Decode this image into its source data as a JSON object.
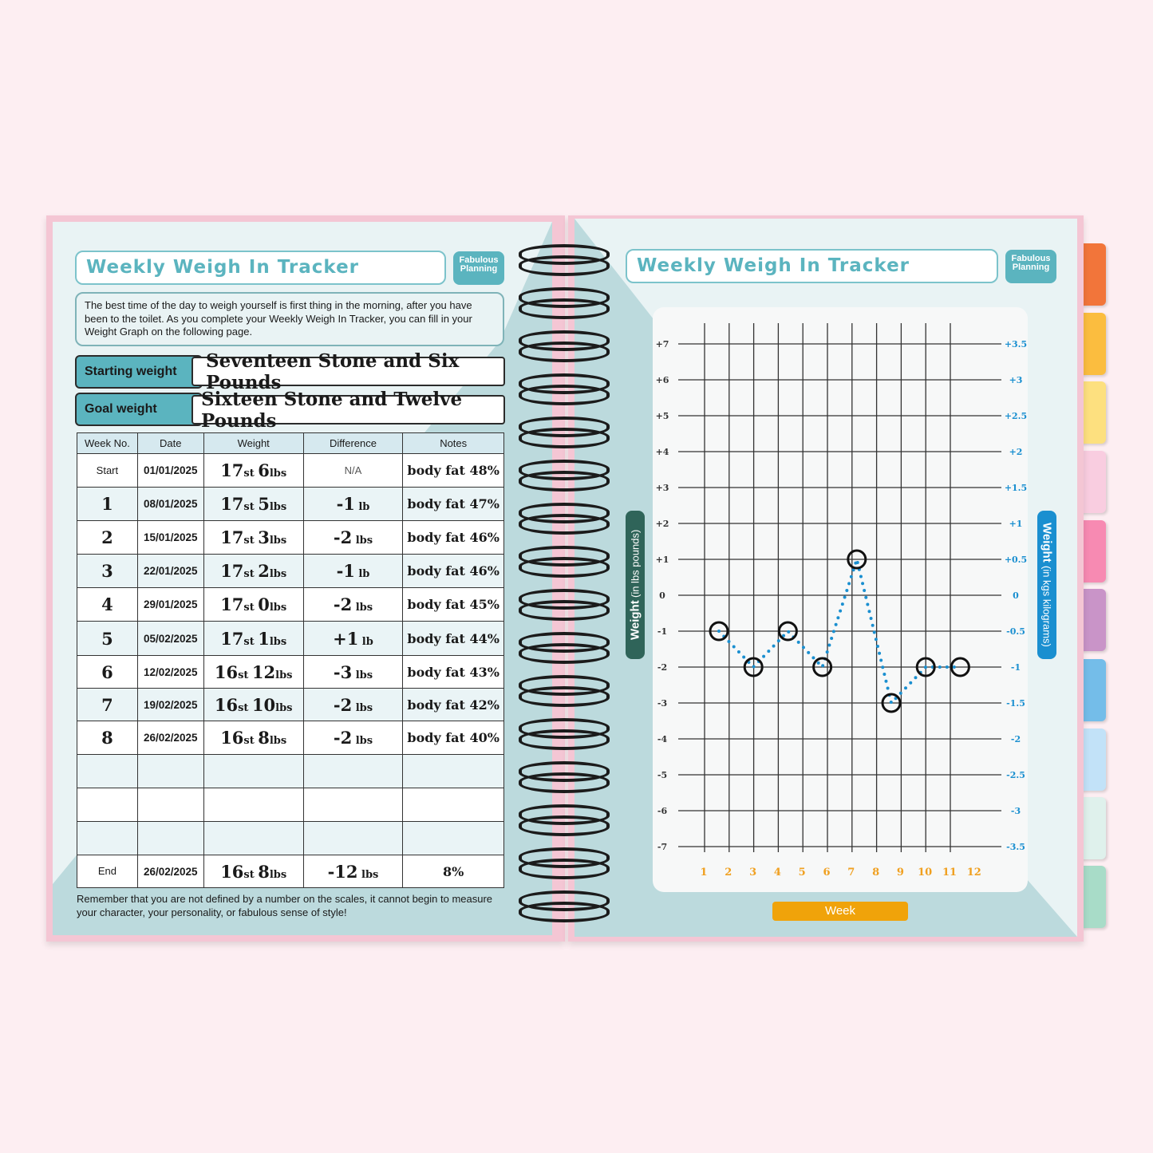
{
  "left_page": {
    "title": "Weekly Weigh In Tracker",
    "logo_text": "Fabulous Planning",
    "intro": "The best time of the day to weigh yourself is first thing in the morning, after you have been to the toilet. As you complete your Weekly Weigh In Tracker, you can fill in your Weight Graph on the following page.",
    "starting_weight": {
      "label": "Starting weight",
      "value": "Seventeen Stone and Six Pounds"
    },
    "goal_weight": {
      "label": "Goal weight",
      "value": "Sixteen Stone and Twelve Pounds"
    },
    "table": {
      "headers": [
        "Week No.",
        "Date",
        "Weight",
        "Difference",
        "Notes"
      ],
      "units": {
        "st": "st",
        "lbs": "lbs"
      },
      "rows": [
        {
          "week": "Start",
          "date": "01/01/2025",
          "st": "17",
          "lbs": "6",
          "diff": "N/A",
          "diff_unit": "",
          "notes": "body fat 48%"
        },
        {
          "week": "1",
          "date": "08/01/2025",
          "st": "17",
          "lbs": "5",
          "diff": "-1",
          "diff_unit": "lb",
          "notes": "body fat 47%"
        },
        {
          "week": "2",
          "date": "15/01/2025",
          "st": "17",
          "lbs": "3",
          "diff": "-2",
          "diff_unit": "lbs",
          "notes": "body fat 46%"
        },
        {
          "week": "3",
          "date": "22/01/2025",
          "st": "17",
          "lbs": "2",
          "diff": "-1",
          "diff_unit": "lb",
          "notes": "body fat 46%"
        },
        {
          "week": "4",
          "date": "29/01/2025",
          "st": "17",
          "lbs": "0",
          "diff": "-2",
          "diff_unit": "lbs",
          "notes": "body fat 45%"
        },
        {
          "week": "5",
          "date": "05/02/2025",
          "st": "17",
          "lbs": "1",
          "diff": "+1",
          "diff_unit": "lb",
          "notes": "body fat 44%"
        },
        {
          "week": "6",
          "date": "12/02/2025",
          "st": "16",
          "lbs": "12",
          "diff": "-3",
          "diff_unit": "lbs",
          "notes": "body fat 43%"
        },
        {
          "week": "7",
          "date": "19/02/2025",
          "st": "16",
          "lbs": "10",
          "diff": "-2",
          "diff_unit": "lbs",
          "notes": "body fat 42%"
        },
        {
          "week": "8",
          "date": "26/02/2025",
          "st": "16",
          "lbs": "8",
          "diff": "-2",
          "diff_unit": "lbs",
          "notes": "body fat 40%"
        },
        {
          "week": "",
          "date": "",
          "st": "",
          "lbs": "",
          "diff": "",
          "diff_unit": "",
          "notes": ""
        },
        {
          "week": "",
          "date": "",
          "st": "",
          "lbs": "",
          "diff": "",
          "diff_unit": "",
          "notes": ""
        },
        {
          "week": "",
          "date": "",
          "st": "",
          "lbs": "",
          "diff": "",
          "diff_unit": "",
          "notes": ""
        },
        {
          "week": "End",
          "date": "26/02/2025",
          "st": "16",
          "lbs": "8",
          "diff": "-12",
          "diff_unit": "lbs",
          "notes": "8%"
        }
      ]
    },
    "footer": "Remember that you are not defined by a number on the scales, it cannot begin to measure your character, your personality, or fabulous sense of style!"
  },
  "right_page": {
    "title": "Weekly Weigh In Tracker",
    "logo_text": "Fabulous Planning",
    "left_axis_label": {
      "bold": "Weight",
      "rest": "(in lbs pounds)"
    },
    "right_axis_label": {
      "bold": "Weight",
      "rest": "(in kgs kilograms)"
    },
    "x_axis_button": "Week"
  },
  "chart_data": {
    "type": "line",
    "xlabel": "Week",
    "ylabel": "Weight (in lbs pounds)",
    "y2label": "Weight (in kgs kilograms)",
    "x_ticks": [
      "1",
      "2",
      "3",
      "4",
      "5",
      "6",
      "7",
      "8",
      "9",
      "10",
      "11",
      "12"
    ],
    "y_ticks": [
      "+7",
      "+6",
      "+5",
      "+4",
      "+3",
      "+2",
      "+1",
      "0",
      "-1",
      "-2",
      "-3",
      "-4",
      "-5",
      "-6",
      "-7"
    ],
    "y2_ticks": [
      "+3.5",
      "+3",
      "+2.5",
      "+2",
      "+1.5",
      "+1",
      "+0.5",
      "0",
      "-0.5",
      "-1",
      "-1.5",
      "-2",
      "-2.5",
      "-3",
      "-3.5"
    ],
    "ylim": [
      -7,
      7
    ],
    "grid": true,
    "values": [
      -1,
      -2,
      -1,
      -2,
      1,
      -3,
      -2,
      -2
    ],
    "colors": {
      "line": "#1a8fd0",
      "marker": "#111111",
      "x_ticks": "#f0a020",
      "y2_ticks": "#1a8fd0",
      "y_ticks": "#333333"
    }
  },
  "tabs_colors": [
    "#f2753a",
    "#fbbd3f",
    "#fde07f",
    "#f9cde0",
    "#f78ab2",
    "#c994c8",
    "#74bde9",
    "#c2e2f8",
    "#dff1ec",
    "#a8dcc8"
  ]
}
